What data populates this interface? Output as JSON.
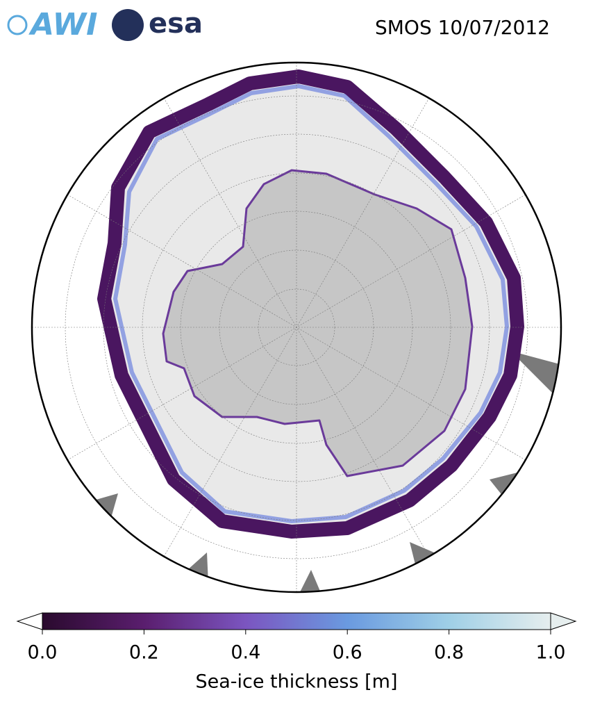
{
  "header": {
    "logos": [
      "AWI",
      "esa"
    ],
    "title": "SMOS 10/07/2012"
  },
  "colorbar": {
    "label": "Sea-ice thickness [m]",
    "lim": [
      0,
      1
    ],
    "ticks": [
      {
        "value": 0,
        "label": "0.0"
      },
      {
        "value": 0.2,
        "label": "0.2"
      },
      {
        "value": 0.4,
        "label": "0.4"
      },
      {
        "value": 0.6,
        "label": "0.6"
      },
      {
        "value": 0.8,
        "label": "0.8"
      },
      {
        "value": 1,
        "label": "1.0"
      }
    ],
    "colors": [
      "#2a0a2e",
      "#5a1e6e",
      "#7b55c0",
      "#6a9ae0",
      "#9fcfe6",
      "#e6eeee"
    ]
  }
}
